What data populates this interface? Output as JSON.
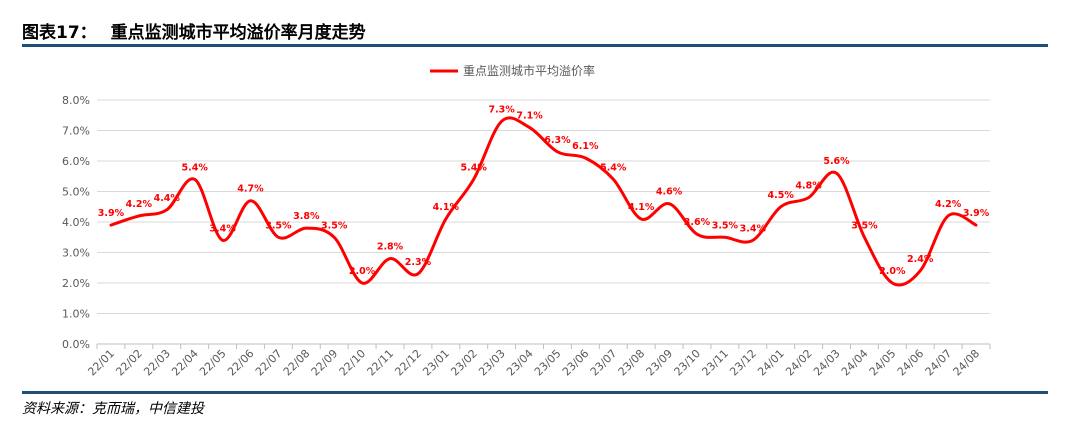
{
  "figure": {
    "title_prefix": "图表17：",
    "title": "重点监测城市平均溢价率月度走势",
    "source": "资料来源：克而瑞，中信建投"
  },
  "chart_data": {
    "type": "line",
    "title": "",
    "xlabel": "",
    "ylabel": "",
    "categories": [
      "22/01",
      "22/02",
      "22/03",
      "22/04",
      "22/05",
      "22/06",
      "22/07",
      "22/08",
      "22/09",
      "22/10",
      "22/11",
      "22/12",
      "23/01",
      "23/02",
      "23/03",
      "23/04",
      "23/05",
      "23/06",
      "23/07",
      "23/08",
      "23/09",
      "23/10",
      "23/11",
      "23/12",
      "24/01",
      "24/02",
      "24/03",
      "24/04",
      "24/05",
      "24/06",
      "24/07",
      "24/08"
    ],
    "series": [
      {
        "name": "重点监测城市平均溢价率",
        "color": "#ff0000",
        "values": [
          3.9,
          4.2,
          4.4,
          5.4,
          3.4,
          4.7,
          3.5,
          3.8,
          3.5,
          2.0,
          2.8,
          2.3,
          4.1,
          5.4,
          7.3,
          7.1,
          6.3,
          6.1,
          5.4,
          4.1,
          4.6,
          3.6,
          3.5,
          3.4,
          4.5,
          4.8,
          5.6,
          3.5,
          2.0,
          2.4,
          4.2,
          3.9
        ],
        "labels": [
          "3.9%",
          "4.2%",
          "4.4%",
          "5.4%",
          "3.4%",
          "4.7%",
          "3.5%",
          "3.8%",
          "3.5%",
          "2.0%",
          "2.8%",
          "2.3%",
          "4.1%",
          "5.4%",
          "7.3%",
          "7.1%",
          "6.3%",
          "6.1%",
          "5.4%",
          "4.1%",
          "4.6%",
          "3.6%",
          "3.5%",
          "3.4%",
          "4.5%",
          "4.8%",
          "5.6%",
          "3.5%",
          "2.0%",
          "2.4%",
          "4.2%",
          "3.9%"
        ]
      }
    ],
    "ylim": [
      0,
      8
    ],
    "yticks": [
      "0.0%",
      "1.0%",
      "2.0%",
      "3.0%",
      "4.0%",
      "5.0%",
      "6.0%",
      "7.0%",
      "8.0%"
    ],
    "grid": true,
    "legend": "top-center",
    "smooth": true
  }
}
